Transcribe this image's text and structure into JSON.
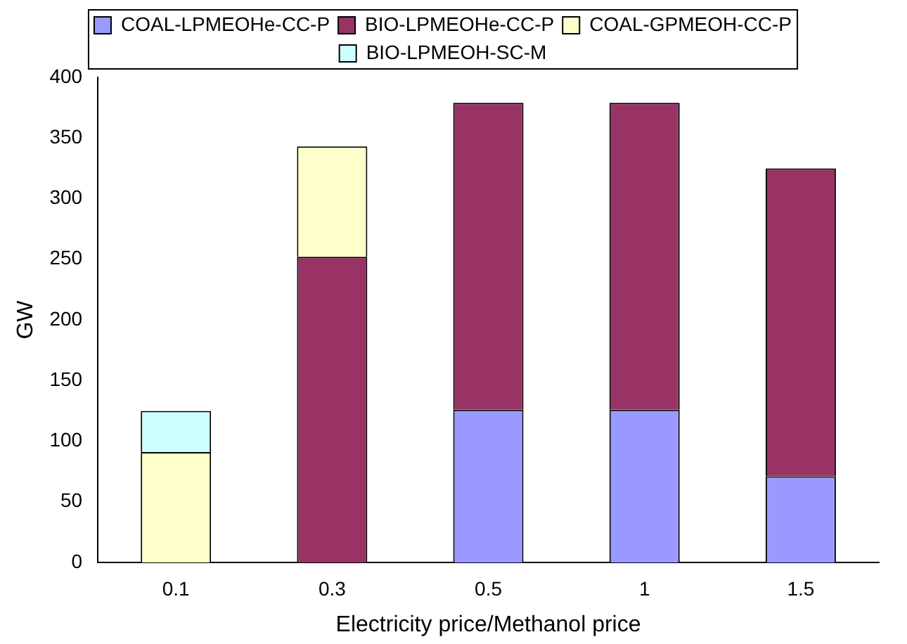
{
  "chart_data": {
    "type": "bar",
    "stacked": true,
    "xlabel": "Electricity price/Methanol price",
    "ylabel": "GW",
    "categories": [
      "0.1",
      "0.3",
      "0.5",
      "1",
      "1.5"
    ],
    "series": [
      {
        "name": "COAL-LPMEOHe-CC-P",
        "color": "#9999ff",
        "values": [
          null,
          null,
          126,
          126,
          71
        ]
      },
      {
        "name": "BIO-LPMEOHe-CC-P",
        "color": "#993366",
        "values": [
          null,
          252,
          253,
          253,
          254
        ]
      },
      {
        "name": "COAL-GPMEOH-CC-P",
        "color": "#ffffcc",
        "values": [
          91,
          91,
          null,
          null,
          null
        ]
      },
      {
        "name": "BIO-LPMEOH-SC-M",
        "color": "#ccffff",
        "values": [
          34,
          null,
          null,
          null,
          null
        ]
      }
    ],
    "ylim": [
      0,
      400
    ],
    "yticks": [
      0,
      50,
      100,
      150,
      200,
      250,
      300,
      350,
      400
    ],
    "grid": false,
    "legend": "top"
  }
}
